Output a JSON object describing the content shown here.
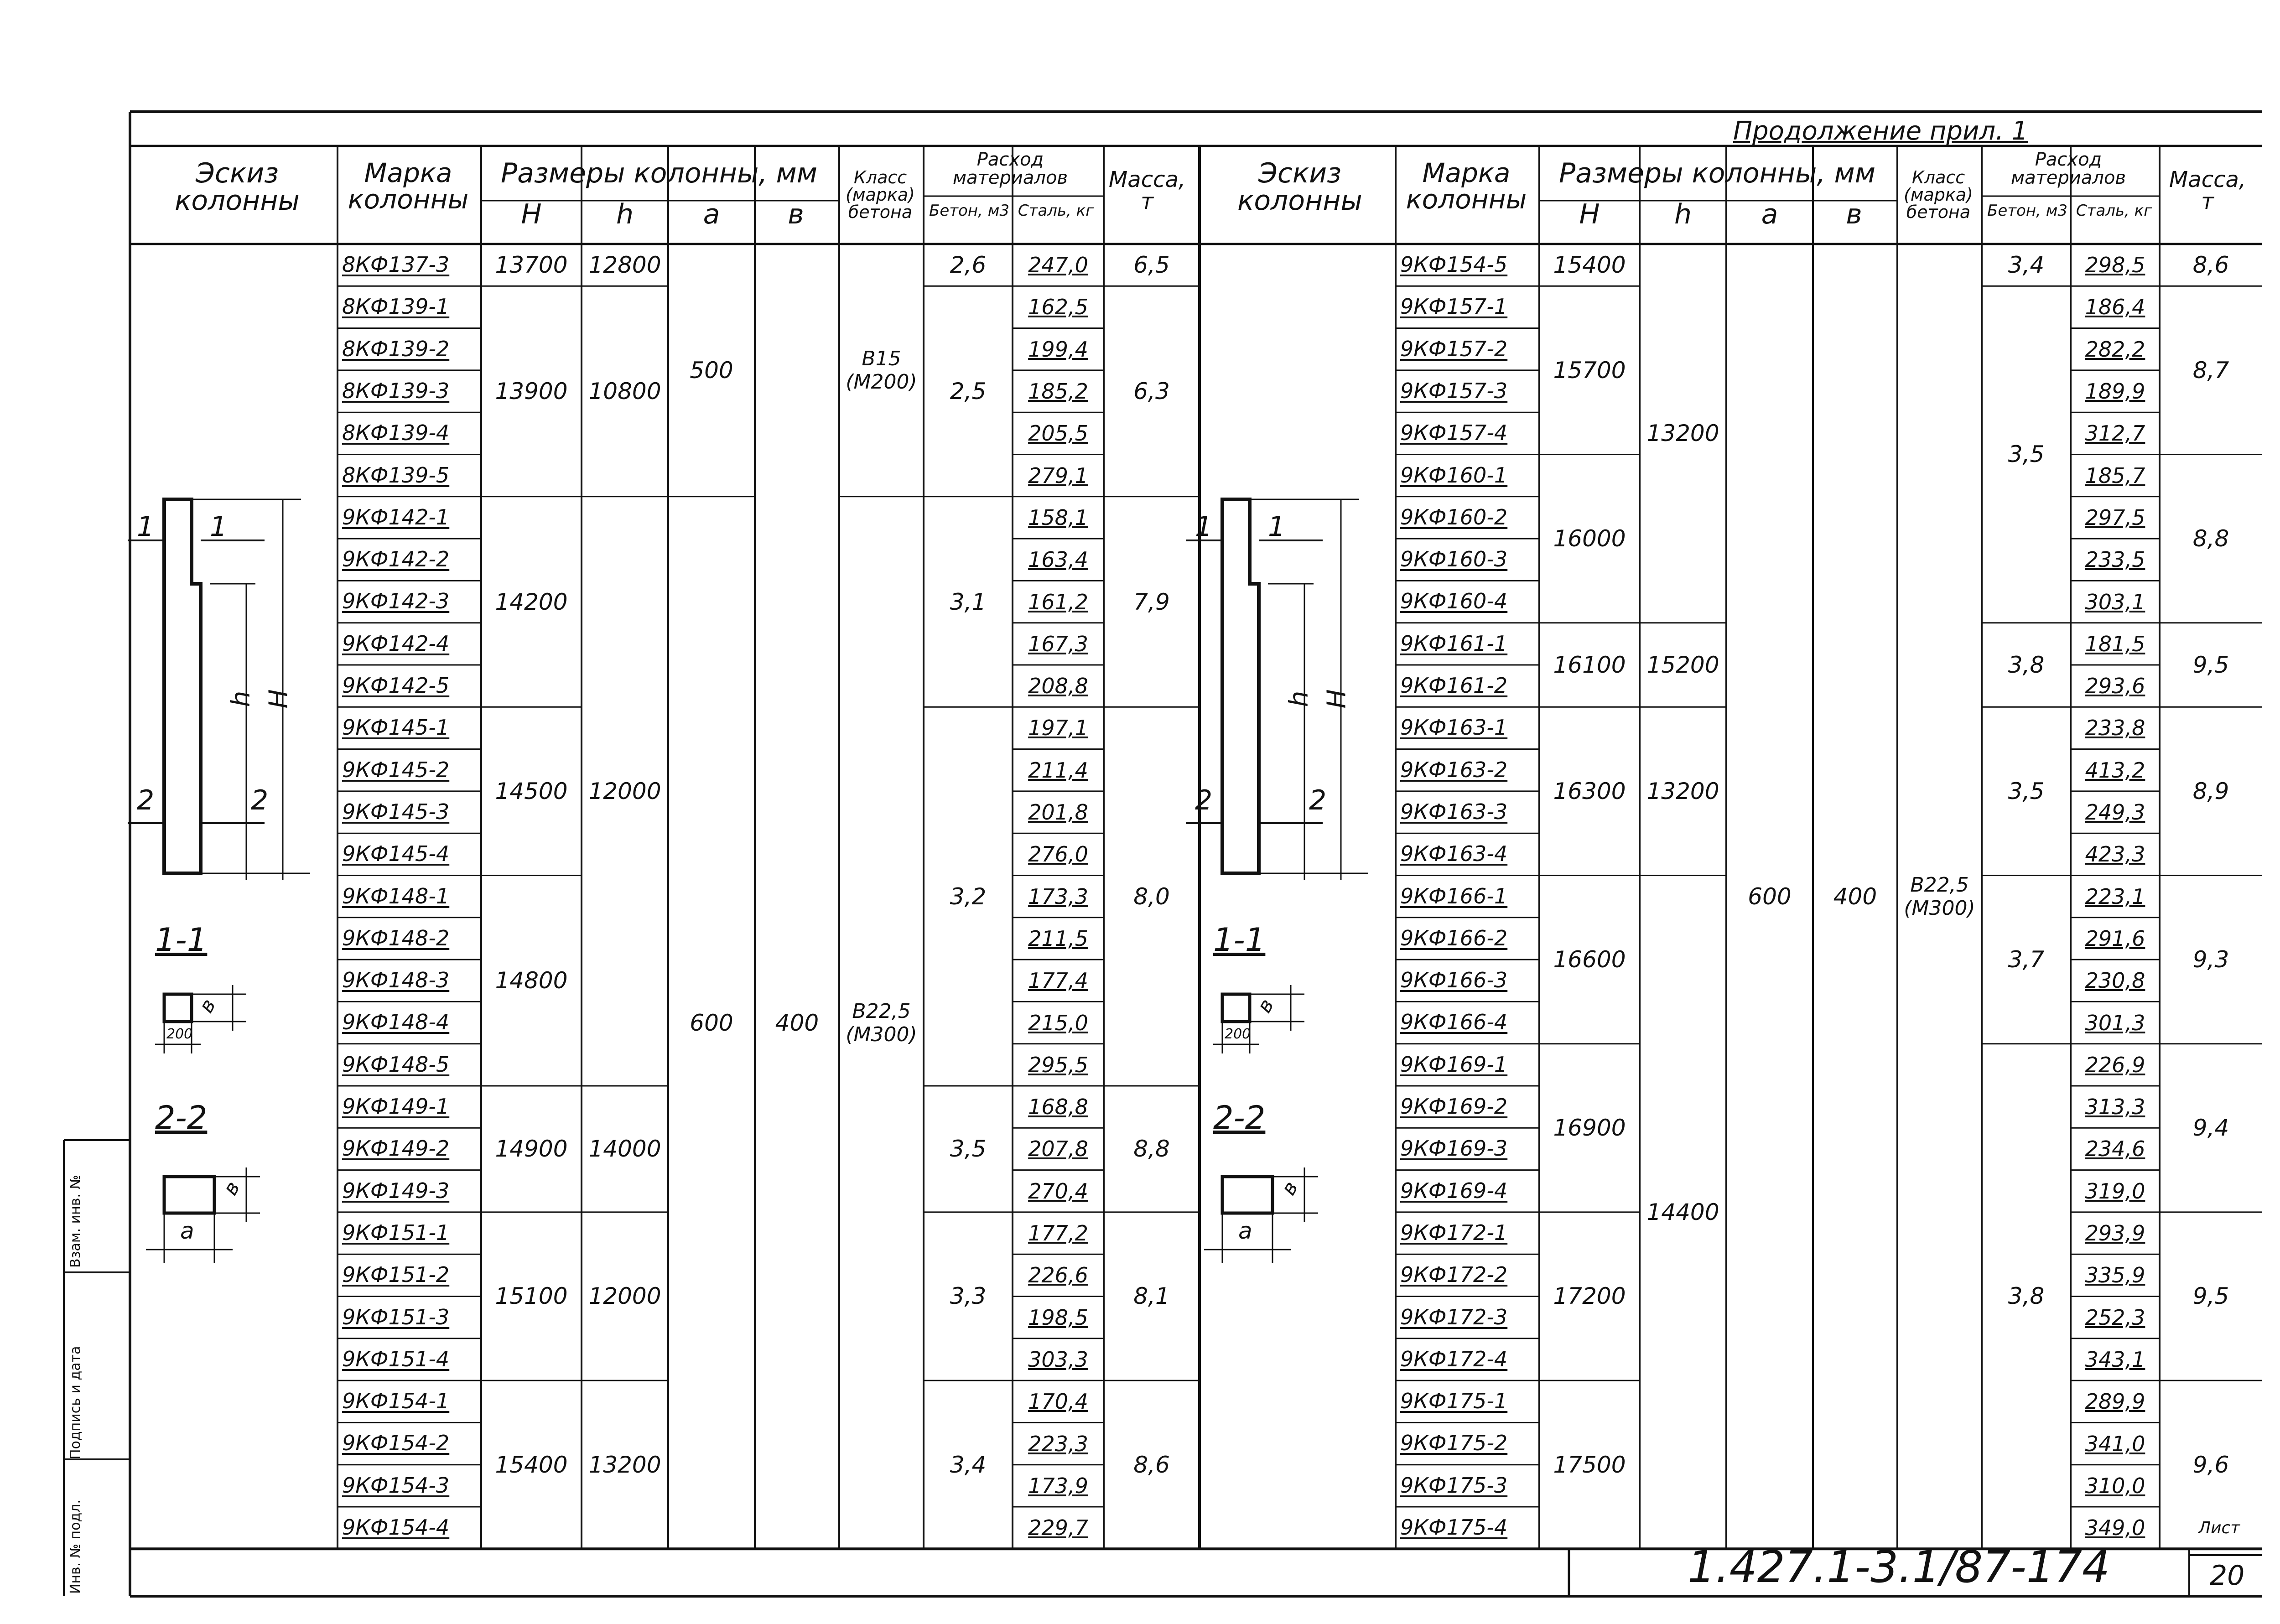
{
  "header": {
    "continuation": "Продолжение прил. 1"
  },
  "columns": {
    "sketch": "Эскиз колонны",
    "mark": "Марка колонны",
    "dims": "Размеры колонны, мм",
    "H": "Н",
    "h": "h",
    "a": "а",
    "b": "в",
    "class": "Класс (марка) бетона",
    "materials": "Расход материалов",
    "concrete": "Бетон, м3",
    "steel": "Сталь, кг",
    "mass": "Масса, т"
  },
  "sketch_labels": {
    "l1": "1",
    "l2": "2",
    "sec11": "1-1",
    "sec22": "2-2",
    "H": "Н",
    "h": "h",
    "b": "в",
    "a": "а",
    "w200": "200"
  },
  "left": {
    "marks": [
      "8КФ137-3",
      "8КФ139-1",
      "8КФ139-2",
      "8КФ139-3",
      "8КФ139-4",
      "8КФ139-5",
      "9КФ142-1",
      "9КФ142-2",
      "9КФ142-3",
      "9КФ142-4",
      "9КФ142-5",
      "9КФ145-1",
      "9КФ145-2",
      "9КФ145-3",
      "9КФ145-4",
      "9КФ148-1",
      "9КФ148-2",
      "9КФ148-3",
      "9КФ148-4",
      "9КФ148-5",
      "9КФ149-1",
      "9КФ149-2",
      "9КФ149-3",
      "9КФ151-1",
      "9КФ151-2",
      "9КФ151-3",
      "9КФ151-4",
      "9КФ154-1",
      "9КФ154-2",
      "9КФ154-3",
      "9КФ154-4"
    ],
    "steel": [
      "247,0",
      "162,5",
      "199,4",
      "185,2",
      "205,5",
      "279,1",
      "158,1",
      "163,4",
      "161,2",
      "167,3",
      "208,8",
      "197,1",
      "211,4",
      "201,8",
      "276,0",
      "173,3",
      "211,5",
      "177,4",
      "215,0",
      "295,5",
      "168,8",
      "207,8",
      "270,4",
      "177,2",
      "226,6",
      "198,5",
      "303,3",
      "170,4",
      "223,3",
      "173,9",
      "229,7"
    ],
    "H": [
      "13700",
      "13900",
      "14200",
      "14500",
      "14800",
      "14900",
      "15100",
      "15400"
    ],
    "h": [
      "12800",
      "10800",
      "12000",
      "14000",
      "12000",
      "13200"
    ],
    "a": [
      "500",
      "600"
    ],
    "b": "400",
    "class": [
      [
        "В15",
        "(М200)"
      ],
      [
        "В22,5",
        "(М300)"
      ]
    ],
    "concrete": [
      "2,6",
      "2,5",
      "3,1",
      "3,2",
      "3,5",
      "3,3",
      "3,4"
    ],
    "mass": [
      "6,5",
      "6,3",
      "7,9",
      "8,0",
      "8,8",
      "8,1",
      "8,6"
    ]
  },
  "right": {
    "marks": [
      "9КФ154-5",
      "9КФ157-1",
      "9КФ157-2",
      "9КФ157-3",
      "9КФ157-4",
      "9КФ160-1",
      "9КФ160-2",
      "9КФ160-3",
      "9КФ160-4",
      "9КФ161-1",
      "9КФ161-2",
      "9КФ163-1",
      "9КФ163-2",
      "9КФ163-3",
      "9КФ163-4",
      "9КФ166-1",
      "9КФ166-2",
      "9КФ166-3",
      "9КФ166-4",
      "9КФ169-1",
      "9КФ169-2",
      "9КФ169-3",
      "9КФ169-4",
      "9КФ172-1",
      "9КФ172-2",
      "9КФ172-3",
      "9КФ172-4",
      "9КФ175-1",
      "9КФ175-2",
      "9КФ175-3",
      "9КФ175-4"
    ],
    "steel": [
      "298,5",
      "186,4",
      "282,2",
      "189,9",
      "312,7",
      "185,7",
      "297,5",
      "233,5",
      "303,1",
      "181,5",
      "293,6",
      "233,8",
      "413,2",
      "249,3",
      "423,3",
      "223,1",
      "291,6",
      "230,8",
      "301,3",
      "226,9",
      "313,3",
      "234,6",
      "319,0",
      "293,9",
      "335,9",
      "252,3",
      "343,1",
      "289,9",
      "341,0",
      "310,0",
      "349,0"
    ],
    "H": [
      "15400",
      "15700",
      "16000",
      "16100",
      "16300",
      "16600",
      "16900",
      "17200",
      "17500"
    ],
    "h": [
      "13200",
      "15200",
      "13200",
      "14400"
    ],
    "a": "600",
    "b": "400",
    "class": [
      "В22,5",
      "(М300)"
    ],
    "concrete": [
      "3,4",
      "3,5",
      "3,8",
      "3,5",
      "3,7",
      "3,8"
    ],
    "mass": [
      "8,6",
      "8,7",
      "8,8",
      "9,5",
      "8,9",
      "9,3",
      "9,4",
      "9,5",
      "9,6"
    ]
  },
  "stamp": {
    "code": "1.427.1-3.1/87-174",
    "sheet_label": "Лист",
    "sheet_no": "20"
  },
  "margin": {
    "inv_no": "Инв. № подл.",
    "sign_date": "Подпись и дата",
    "vzam": "Взам. инв. №"
  }
}
